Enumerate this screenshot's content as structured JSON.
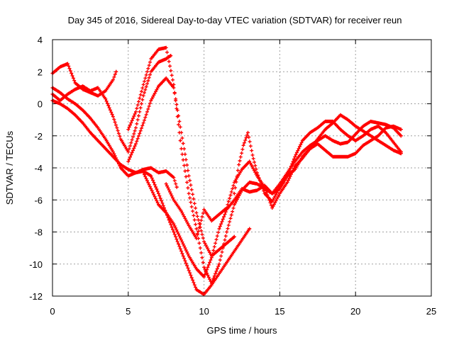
{
  "chart_data": {
    "type": "scatter",
    "title": "Day 345 of 2016, Sidereal Day-to-day VTEC variation (SDTVAR) for receiver reun",
    "xlabel": "GPS time / hours",
    "ylabel": "SDTVAR / TECUs",
    "xlim": [
      0,
      25
    ],
    "ylim": [
      -12,
      4
    ],
    "x_ticks": [
      "0",
      "5",
      "10",
      "15",
      "20",
      "25"
    ],
    "y_ticks": [
      "4",
      "2",
      "0",
      "-2",
      "-4",
      "-6",
      "-8",
      "-10",
      "-12"
    ],
    "grid": true,
    "marker": "+",
    "colors": {
      "series": "#ff0000"
    },
    "series": [
      {
        "x": [
          0,
          0.5,
          1,
          1.5,
          2,
          2.5,
          3,
          3.5,
          4,
          4.2
        ],
        "y": [
          1.9,
          2.3,
          2.5,
          1.3,
          0.9,
          0.7,
          0.5,
          0.8,
          1.5,
          2.0
        ]
      },
      {
        "x": [
          0,
          0.5,
          1,
          1.5,
          2,
          2.5,
          3,
          3.5,
          4,
          4.5,
          5,
          5.5,
          6,
          6.5,
          7,
          7.5,
          7.8
        ],
        "y": [
          0.6,
          0.2,
          0.6,
          0.9,
          1.1,
          0.8,
          1.0,
          0.3,
          -0.8,
          -2.2,
          -3.0,
          -1.5,
          0.5,
          2.0,
          2.6,
          2.8,
          3.0
        ]
      },
      {
        "x": [
          0,
          0.5,
          1,
          1.5,
          2,
          2.5,
          3,
          3.5,
          4,
          4.5,
          5,
          5.5,
          6,
          6.5,
          7,
          7.5,
          8,
          8.2
        ],
        "y": [
          1.0,
          0.7,
          0.3,
          0.0,
          -0.4,
          -0.9,
          -1.5,
          -2.2,
          -3.0,
          -4.0,
          -4.5,
          -4.3,
          -4.1,
          -4.0,
          -4.3,
          -4.2,
          -4.6,
          -5.2
        ]
      },
      {
        "x": [
          0,
          0.5,
          1,
          1.5,
          2,
          2.5,
          3,
          3.5,
          4,
          4.5,
          5,
          5.5,
          6,
          6.5,
          7,
          7.5,
          8,
          8.5,
          9,
          9.5,
          10,
          10.5,
          11,
          11.5,
          12,
          12.5,
          13
        ],
        "y": [
          0.2,
          0.0,
          -0.3,
          -0.7,
          -1.2,
          -1.8,
          -2.3,
          -2.8,
          -3.3,
          -3.8,
          -4.1,
          -4.3,
          -4.2,
          -4.5,
          -5.6,
          -6.8,
          -8.0,
          -9.2,
          -10.4,
          -11.6,
          -11.9,
          -11.3,
          -10.6,
          -9.9,
          -9.2,
          -8.5,
          -7.8
        ]
      },
      {
        "x": [
          5,
          5.5,
          6,
          6.5,
          7,
          7.5,
          8,
          8.5,
          9,
          9.5,
          10,
          10.5,
          11,
          11.5,
          12
        ],
        "y": [
          -3.6,
          -2.5,
          -1.2,
          0.2,
          1.1,
          1.6,
          1.0,
          -1.8,
          -4.5,
          -6.8,
          -8.6,
          -9.5,
          -9.1,
          -8.7,
          -8.3
        ]
      },
      {
        "x": [
          5,
          5.5,
          6,
          6.5,
          7,
          7.5,
          8,
          8.5,
          9,
          9.5,
          10,
          10.5,
          11,
          11.5,
          12,
          12.5,
          13,
          13.5,
          14,
          14.5,
          15,
          15.5,
          16,
          16.5,
          17,
          17.5,
          18,
          18.5,
          19,
          19.5,
          20,
          20.5,
          21,
          21.5,
          22,
          22.5,
          23
        ],
        "y": [
          -1.6,
          -0.5,
          1.2,
          2.8,
          3.4,
          3.5,
          1.2,
          -2.8,
          -5.6,
          -7.8,
          -10.2,
          -11.2,
          -10.0,
          -8.0,
          -6.3,
          -5.4,
          -4.9,
          -5.0,
          -5.3,
          -5.6,
          -5.3,
          -4.5,
          -3.3,
          -2.3,
          -1.8,
          -1.5,
          -1.1,
          -1.1,
          -1.6,
          -2.0,
          -2.3,
          -2.0,
          -1.6,
          -1.4,
          -1.8,
          -2.4,
          -3.0
        ]
      },
      {
        "x": [
          6,
          6.5,
          7,
          7.5,
          8,
          8.5,
          9,
          9.5,
          10,
          10.5,
          11,
          11.5,
          12,
          12.5,
          13,
          13.5,
          14,
          14.5,
          15,
          15.5,
          16,
          16.5,
          17,
          17.5,
          18,
          18.5,
          19,
          19.5,
          20,
          20.5,
          21,
          21.5,
          22,
          22.5,
          23
        ],
        "y": [
          -4.3,
          -5.3,
          -6.3,
          -6.8,
          -7.5,
          -8.5,
          -9.5,
          -10.3,
          -10.8,
          -9.6,
          -7.8,
          -6.6,
          -6.0,
          -5.3,
          -5.5,
          -5.4,
          -5.1,
          -5.6,
          -5.0,
          -4.3,
          -3.6,
          -3.0,
          -2.6,
          -2.3,
          -2.0,
          -2.3,
          -2.5,
          -2.4,
          -1.9,
          -1.4,
          -1.1,
          -1.2,
          -1.3,
          -1.5,
          -2.0
        ]
      },
      {
        "x": [
          7.5,
          8,
          8.5,
          9,
          9.5,
          10,
          10.5,
          11,
          11.5,
          12,
          12.5,
          13,
          13.5,
          14,
          14.5,
          15,
          15.5,
          16,
          16.5,
          17,
          17.5,
          18,
          18.5,
          19,
          19.5,
          20,
          20.5,
          21,
          21.5,
          22,
          22.5,
          23
        ],
        "y": [
          -5.0,
          -6.0,
          -6.7,
          -7.6,
          -8.4,
          -6.6,
          -7.3,
          -6.9,
          -6.5,
          -4.9,
          -4.1,
          -3.6,
          -4.5,
          -5.2,
          -6.5,
          -5.6,
          -4.9,
          -3.9,
          -3.4,
          -2.8,
          -2.5,
          -2.9,
          -3.3,
          -3.3,
          -3.3,
          -3.1,
          -2.6,
          -2.3,
          -2.0,
          -1.5,
          -1.4,
          -1.6
        ]
      },
      {
        "x": [
          12,
          12.3,
          12.6,
          12.9,
          13.2,
          13.5,
          14,
          14.5,
          15,
          15.5,
          16,
          16.5,
          17,
          17.5,
          18,
          18.5,
          19,
          19.5,
          20,
          20.5,
          21,
          21.5,
          22,
          22.5,
          23
        ],
        "y": [
          -5.6,
          -3.8,
          -2.6,
          -1.8,
          -3.2,
          -4.3,
          -5.6,
          -6.1,
          -5.2,
          -4.5,
          -4.1,
          -3.3,
          -2.8,
          -2.2,
          -1.6,
          -1.2,
          -0.7,
          -1.0,
          -1.4,
          -1.7,
          -2.0,
          -2.3,
          -2.6,
          -2.9,
          -3.1
        ]
      }
    ]
  }
}
